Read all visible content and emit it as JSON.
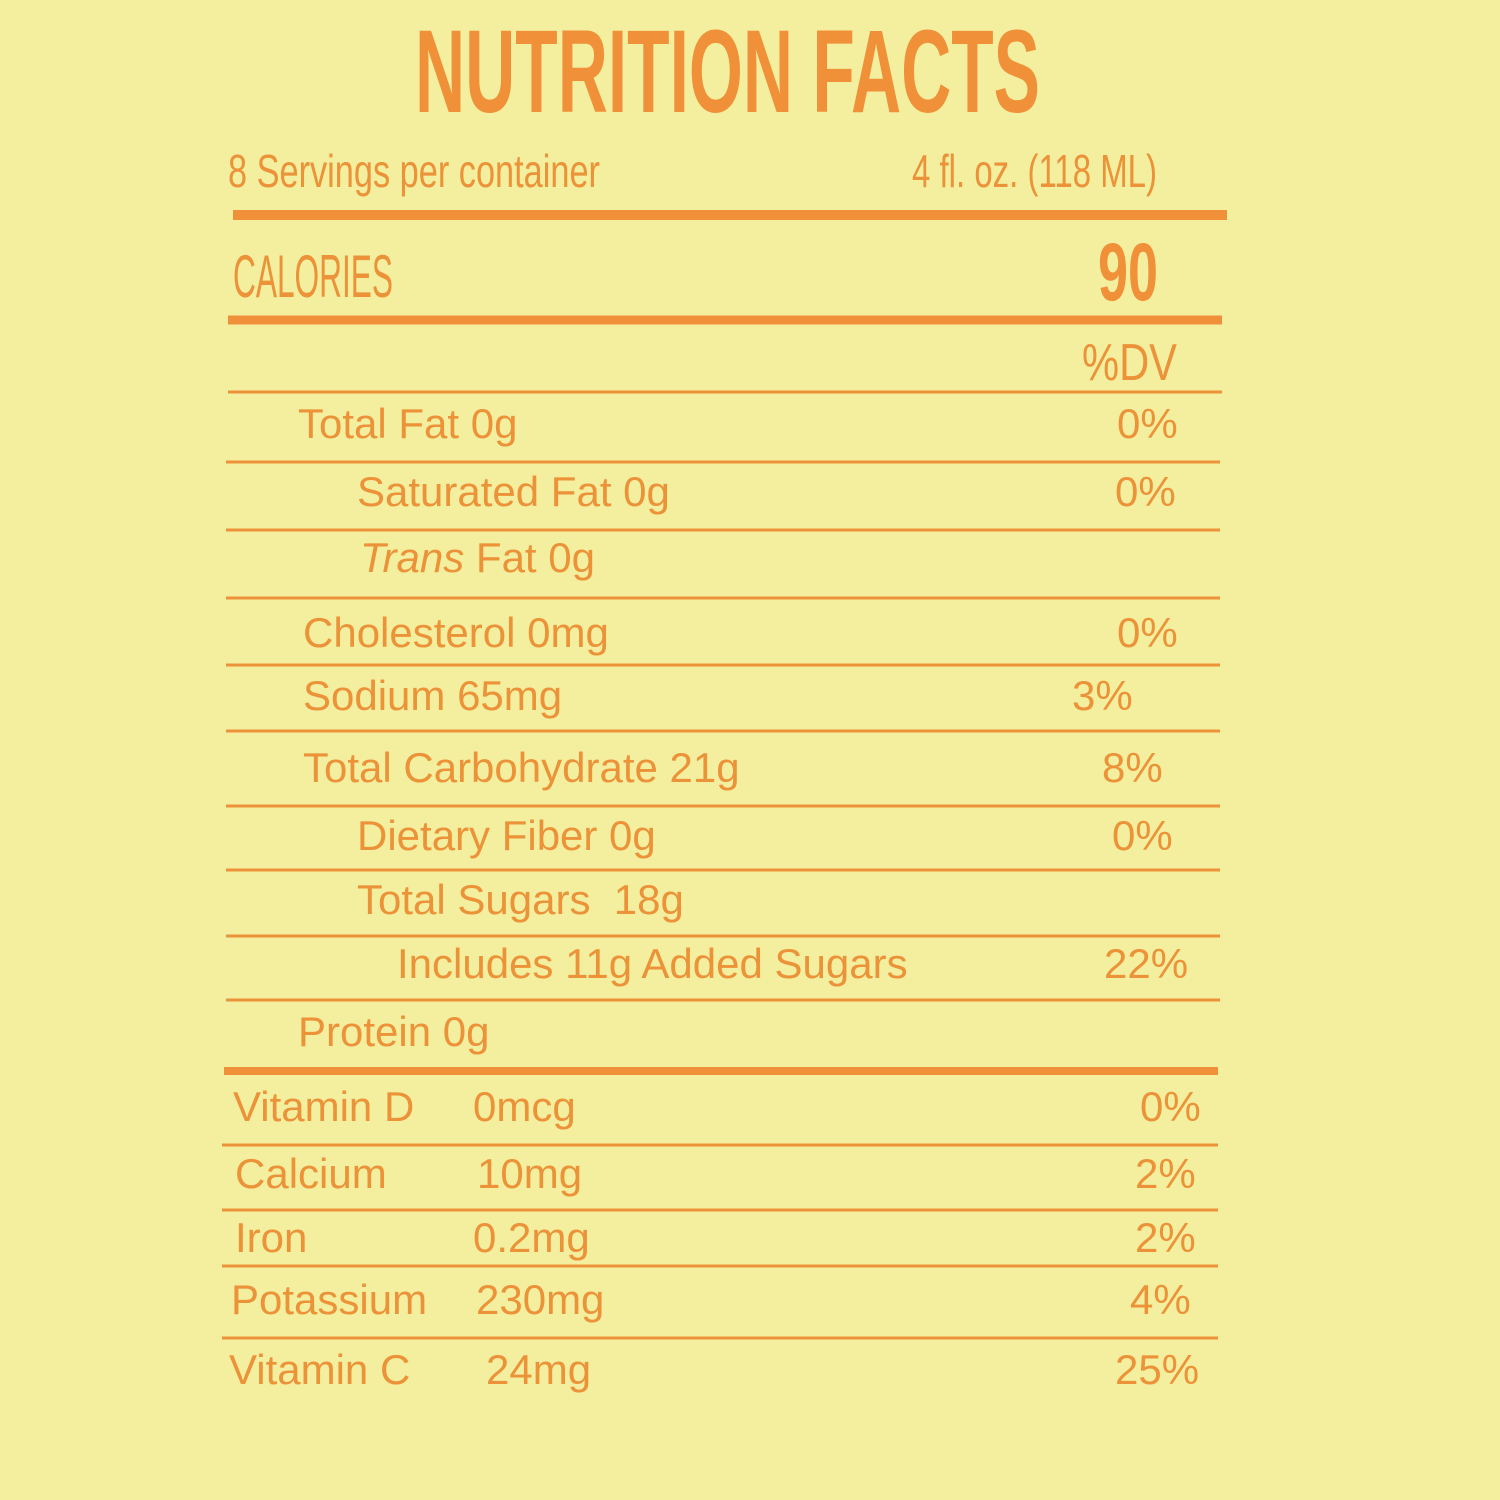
{
  "title": "NUTRITION FACTS",
  "servings": "8 Servings per container",
  "serving_size": "4 fl. oz. (118 ML)",
  "calories_label": "CALORIES",
  "calories": "90",
  "dv_header": "%DV",
  "nutrients": [
    {
      "name": "Total Fat 0g",
      "dv": "0%"
    },
    {
      "name": "Saturated Fat 0g",
      "dv": "0%"
    },
    {
      "italic": "Trans",
      "name": "Fat 0g"
    },
    {
      "name": "Cholesterol 0mg",
      "dv": "0%"
    },
    {
      "name": "Sodium 65mg",
      "dv": "3%"
    },
    {
      "name": "Total Carbohydrate 21g",
      "dv": "8%"
    },
    {
      "name": "Dietary Fiber 0g",
      "dv": "0%"
    },
    {
      "name": "Total Sugars  18g"
    },
    {
      "name": "Includes 11g Added Sugars",
      "dv": "22%"
    },
    {
      "name": "Protein 0g"
    }
  ],
  "vitamins": [
    {
      "name": "Vitamin D",
      "amount": "0mcg",
      "dv": "0%"
    },
    {
      "name": "Calcium",
      "amount": "10mg",
      "dv": "2%"
    },
    {
      "name": "Iron",
      "amount": "0.2mg",
      "dv": "2%"
    },
    {
      "name": "Potassium",
      "amount": "230mg",
      "dv": "4%"
    },
    {
      "name": "Vitamin C",
      "amount": "24mg",
      "dv": "25%"
    }
  ]
}
